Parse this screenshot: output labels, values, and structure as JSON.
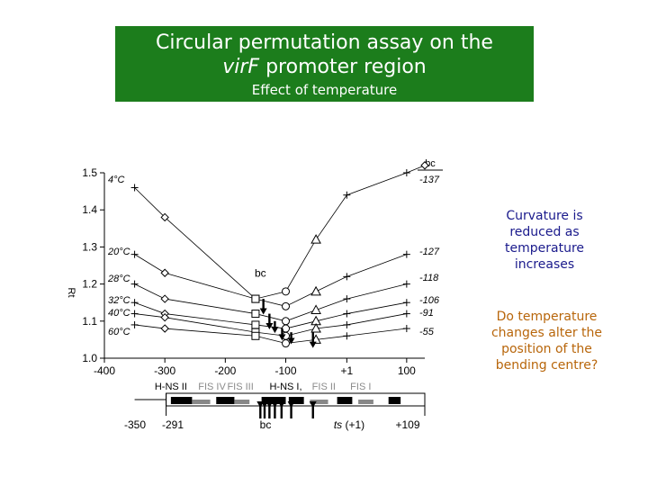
{
  "title": {
    "line1": "Circular permutation assay on the",
    "line2_italic": "virF",
    "line2_rest": " promoter region",
    "subtitle": "Effect of temperature"
  },
  "notes": {
    "curvature": "Curvature is reduced as temperature increases",
    "question": "Do temperature changes alter the position of the bending centre?"
  },
  "colors": {
    "title_bg": "#1c7d1c",
    "note_blue": "#1a1a8c",
    "note_orange": "#b8660b"
  },
  "chart_data": {
    "type": "line",
    "xlim": [
      -400,
      130
    ],
    "ylim": [
      1.0,
      1.5
    ],
    "x_ticks": [
      -400,
      -300,
      -200,
      -100,
      1,
      100
    ],
    "x_tick_labels": [
      "-400",
      "-300",
      "-200",
      "-100",
      "+1",
      "100"
    ],
    "y_ticks": [
      1.0,
      1.1,
      1.2,
      1.3,
      1.4,
      1.5
    ],
    "y_tick_labels": [
      "1.0",
      "1.1",
      "1.2",
      "1.3",
      "1.4",
      "1.5"
    ],
    "ylabel": "Rt",
    "right_header": "bc",
    "series": [
      {
        "name": "4°C",
        "right_label": "-137",
        "points": [
          [
            -350,
            1.46
          ],
          [
            -300,
            1.38
          ],
          [
            -150,
            1.16
          ],
          [
            -100,
            1.18
          ],
          [
            -50,
            1.32
          ],
          [
            1,
            1.44
          ],
          [
            100,
            1.5
          ],
          [
            130,
            1.52
          ]
        ]
      },
      {
        "name": "20°C",
        "right_label": "-127",
        "points": [
          [
            -350,
            1.28
          ],
          [
            -300,
            1.23
          ],
          [
            -150,
            1.16
          ],
          [
            -100,
            1.14
          ],
          [
            -50,
            1.18
          ],
          [
            1,
            1.22
          ],
          [
            100,
            1.28
          ]
        ]
      },
      {
        "name": "28°C",
        "right_label": "-118",
        "points": [
          [
            -350,
            1.2
          ],
          [
            -300,
            1.16
          ],
          [
            -150,
            1.12
          ],
          [
            -100,
            1.1
          ],
          [
            -50,
            1.13
          ],
          [
            1,
            1.16
          ],
          [
            100,
            1.2
          ]
        ]
      },
      {
        "name": "32°C",
        "right_label": "-106",
        "points": [
          [
            -350,
            1.15
          ],
          [
            -300,
            1.12
          ],
          [
            -150,
            1.09
          ],
          [
            -100,
            1.08
          ],
          [
            -50,
            1.1
          ],
          [
            1,
            1.12
          ],
          [
            100,
            1.15
          ]
        ]
      },
      {
        "name": "40°C",
        "right_label": "-91",
        "points": [
          [
            -350,
            1.12
          ],
          [
            -300,
            1.11
          ],
          [
            -150,
            1.07
          ],
          [
            -100,
            1.06
          ],
          [
            -50,
            1.08
          ],
          [
            1,
            1.09
          ],
          [
            100,
            1.12
          ]
        ]
      },
      {
        "name": "60°C",
        "right_label": "-55",
        "points": [
          [
            -350,
            1.09
          ],
          [
            -300,
            1.08
          ],
          [
            -150,
            1.06
          ],
          [
            -100,
            1.04
          ],
          [
            -50,
            1.05
          ],
          [
            1,
            1.06
          ],
          [
            100,
            1.08
          ]
        ]
      }
    ],
    "bc_label": {
      "text": "bc",
      "x": -142,
      "y": 1.22
    },
    "bc_arrows": [
      {
        "x": -137,
        "y_top": 1.16,
        "y_bot": 1.12
      },
      {
        "x": -127,
        "y_top": 1.12,
        "y_bot": 1.08
      },
      {
        "x": -118,
        "y_top": 1.1,
        "y_bot": 1.07
      },
      {
        "x": -106,
        "y_top": 1.08,
        "y_bot": 1.05
      },
      {
        "x": -91,
        "y_top": 1.07,
        "y_bot": 1.04
      },
      {
        "x": -55,
        "y_top": 1.07,
        "y_bot": 1.03
      }
    ],
    "map": {
      "region_labels": [
        {
          "text": "H-NS II",
          "x": -290
        },
        {
          "text": "FIS IV",
          "x": -222,
          "gray": true
        },
        {
          "text": "FIS III",
          "x": -175,
          "gray": true
        },
        {
          "text": "H-NS I,",
          "x": -100
        },
        {
          "text": "FIS II",
          "x": -37,
          "gray": true
        },
        {
          "text": "FIS I",
          "x": 24,
          "gray": true
        }
      ],
      "start_label": "-350",
      "left_label": "-291",
      "bc_label": "bc",
      "ts_label_italic": "ts",
      "ts_label_rest": " (+1)",
      "right_label": "+109"
    }
  }
}
